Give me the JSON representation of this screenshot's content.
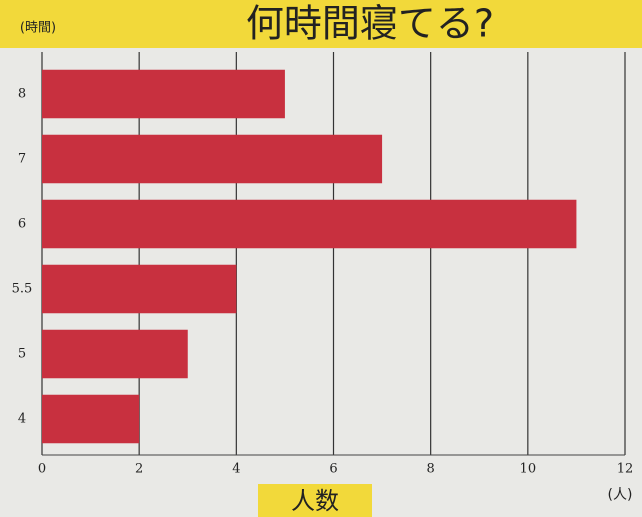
{
  "chart_data": {
    "type": "bar",
    "orientation": "horizontal",
    "title": "何時間寝てる?",
    "y_label": "(時間)",
    "x_label": "人数",
    "x_unit": "(人)",
    "categories": [
      "8",
      "7",
      "6",
      "5.5",
      "5",
      "4"
    ],
    "values": [
      5,
      7,
      11,
      4,
      3,
      2
    ],
    "color": "#c8303f",
    "xlim": [
      0,
      12
    ],
    "xticks": [
      0,
      2,
      4,
      6,
      8,
      10,
      12
    ],
    "grid": true
  }
}
